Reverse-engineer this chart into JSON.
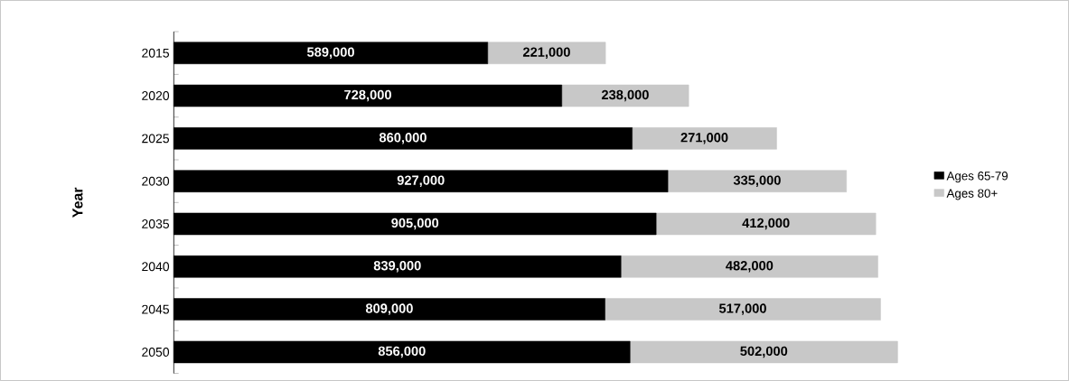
{
  "chart_data": {
    "type": "bar",
    "orientation": "horizontal",
    "stacked": true,
    "ylabel": "Year",
    "legend": "right",
    "categories": [
      "2015",
      "2020",
      "2025",
      "2030",
      "2035",
      "2040",
      "2045",
      "2050"
    ],
    "series": [
      {
        "name": "Ages 65-79",
        "color": "#000000",
        "values": [
          589000,
          728000,
          860000,
          927000,
          905000,
          839000,
          809000,
          856000
        ],
        "value_labels": [
          "589,000",
          "728,000",
          "860,000",
          "927,000",
          "905,000",
          "839,000",
          "809,000",
          "856,000"
        ]
      },
      {
        "name": "Ages 80+",
        "color": "#c8c8c8",
        "values": [
          221000,
          238000,
          271000,
          335000,
          412000,
          482000,
          517000,
          502000
        ],
        "value_labels": [
          "221,000",
          "238,000",
          "271,000",
          "335,000",
          "412,000",
          "482,000",
          "517,000",
          "502,000"
        ]
      }
    ]
  }
}
